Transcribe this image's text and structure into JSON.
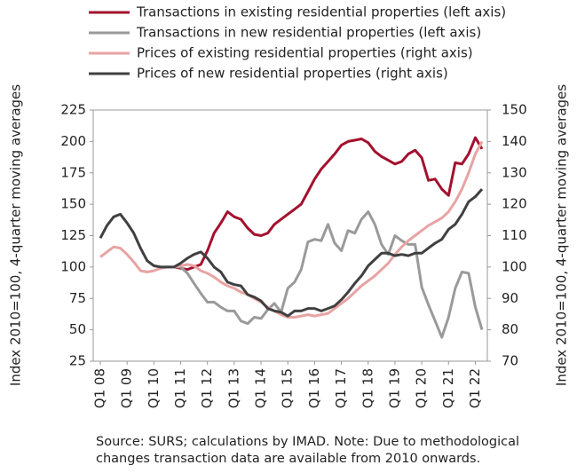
{
  "chart_data": {
    "type": "line",
    "y_label": "Index 2010=100, 4-quarter moving averages",
    "y2_label": "Index 2010=100, 4-quarter moving averages",
    "note": "Source: SURS; calculations by IMAD. Note: Due to methodological changes transaction data are available from 2010 onwards.",
    "categories": [
      "Q1 08",
      null,
      null,
      null,
      "Q1 09",
      null,
      null,
      null,
      "Q1 10",
      null,
      null,
      null,
      "Q1 11",
      null,
      null,
      null,
      "Q1 12",
      null,
      null,
      null,
      "Q1 13",
      null,
      null,
      null,
      "Q1 14",
      null,
      null,
      null,
      "Q1 15",
      null,
      null,
      null,
      "Q1 16",
      null,
      null,
      null,
      "Q1 17",
      null,
      null,
      null,
      "Q1 18",
      null,
      null,
      null,
      "Q1 19",
      null,
      null,
      null,
      "Q1 20",
      null,
      null,
      null,
      "Q1 21",
      null,
      null,
      null,
      "Q1 22",
      null
    ],
    "ylim": [
      25,
      225
    ],
    "yticks": [
      25,
      50,
      75,
      100,
      125,
      150,
      175,
      200,
      225
    ],
    "y2lim": [
      70,
      150
    ],
    "y2ticks": [
      70,
      80,
      90,
      100,
      110,
      120,
      130,
      140,
      150
    ],
    "series": [
      {
        "name": "Transactions in existing residential properties (left axis)",
        "color": "#a3112e",
        "axis": "y",
        "values": [
          null,
          null,
          null,
          null,
          null,
          null,
          null,
          null,
          null,
          null,
          null,
          100,
          99,
          98,
          100,
          102,
          113,
          127,
          135,
          144,
          140,
          138,
          131,
          126,
          125,
          127,
          134,
          138,
          142,
          146,
          150,
          160,
          170,
          178,
          184,
          190,
          197,
          200,
          201,
          202,
          199,
          192,
          188,
          185,
          182,
          184,
          190,
          193,
          187,
          169,
          170,
          162,
          157,
          183,
          182,
          190,
          203,
          194
        ]
      },
      {
        "name": "Transactions in new residential properties (left axis)",
        "color": "#9a9a9a",
        "axis": "y",
        "values": [
          null,
          null,
          null,
          null,
          null,
          null,
          null,
          null,
          null,
          null,
          null,
          100,
          100,
          95,
          87,
          79,
          72,
          72,
          68,
          65,
          65,
          57,
          55,
          60,
          59,
          66,
          71,
          64,
          83,
          88,
          98,
          120,
          122,
          121,
          134,
          119,
          113,
          129,
          127,
          138,
          144,
          134,
          118,
          110,
          125,
          121,
          118,
          118,
          84,
          70,
          57,
          44,
          60,
          83,
          96,
          95,
          68,
          50
        ]
      },
      {
        "name": "Prices of existing residential properties (right axis)",
        "color": "#e8a3a3",
        "axis": "y2",
        "values": [
          103.2,
          104.8,
          106.4,
          106,
          104,
          101.6,
          98.8,
          98.4,
          98.8,
          99.6,
          100,
          100,
          100.4,
          100.8,
          100.4,
          98.8,
          98,
          96.8,
          95.2,
          94,
          93.2,
          92,
          91.2,
          90,
          88.8,
          87.2,
          86,
          84.8,
          84,
          84,
          84.4,
          84.8,
          84.4,
          84.8,
          85.2,
          86.8,
          88.4,
          90,
          92,
          94,
          95.6,
          97.2,
          99.2,
          101.2,
          104,
          106.4,
          108.4,
          110,
          111.6,
          113.2,
          114.4,
          115.6,
          117.6,
          120.8,
          124.8,
          130,
          136,
          140
        ]
      },
      {
        "name": "Prices of new residential properties (right axis)",
        "color": "#404040",
        "axis": "y2",
        "values": [
          109.2,
          113.2,
          116,
          116.8,
          114,
          110.8,
          106,
          102,
          100.4,
          100,
          100,
          100,
          101.2,
          102.8,
          104,
          104.8,
          102.8,
          100,
          98.4,
          95.2,
          94.4,
          94,
          91.2,
          90.4,
          89.2,
          86.8,
          86,
          85.6,
          84.4,
          86,
          86,
          86.8,
          86.8,
          86,
          86.8,
          87.6,
          89.6,
          92,
          94.8,
          97.2,
          100.4,
          102.4,
          104.4,
          104.4,
          103.6,
          104,
          103.6,
          104.4,
          104.4,
          106,
          107.6,
          108.8,
          112,
          113.6,
          116.8,
          120.8,
          122.4,
          124.8
        ]
      }
    ]
  }
}
